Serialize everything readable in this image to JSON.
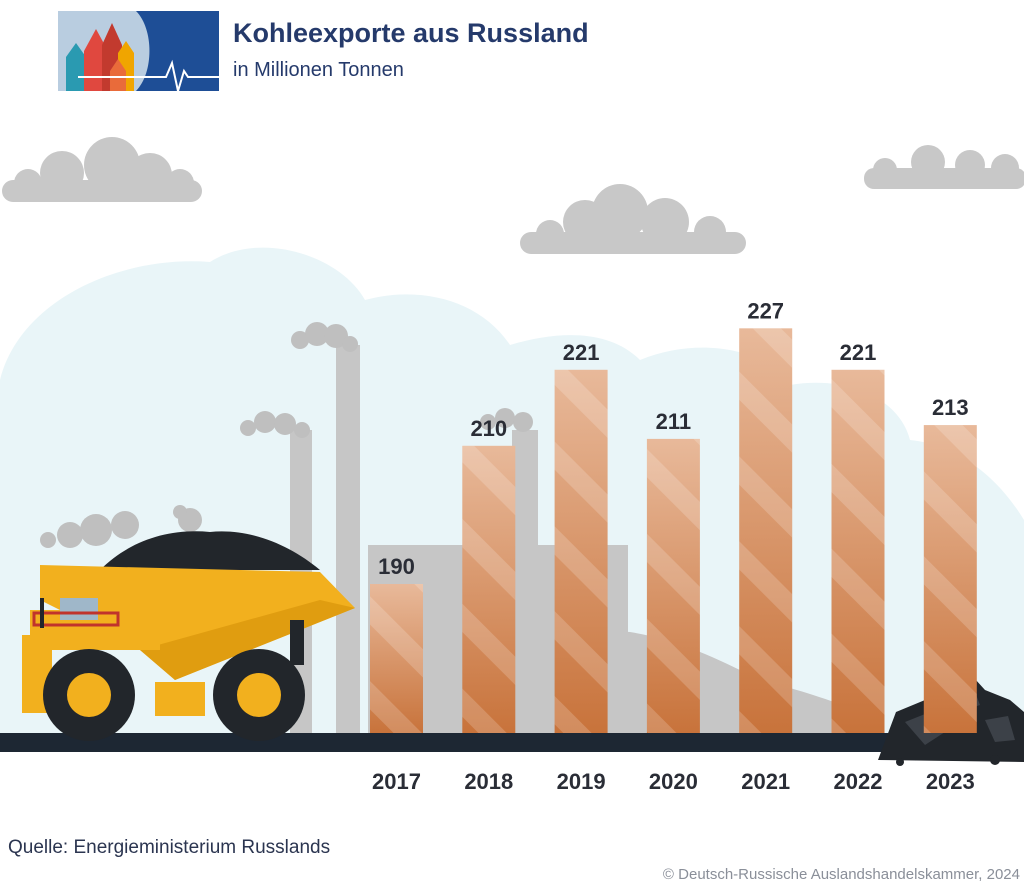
{
  "header": {
    "title": "Kohleexporte aus Russland",
    "subtitle": "in Millionen Tonnen"
  },
  "footer": {
    "source": "Quelle: Energieministerium Russlands",
    "copyright": "© Deutsch-Russische Auslandshandelskammer, 2024"
  },
  "colors": {
    "title": "#253a6b",
    "bar_top": "#e8b99a",
    "bar_bottom": "#c8733b",
    "ground": "#1d2733",
    "cloud": "#c8c8c8",
    "backdrop": "#e9f5f8",
    "truck": "#f2b01e",
    "logo_blue": "#1e4e96"
  },
  "icons": [
    "logo-cathedral-heartbeat-icon",
    "dump-truck-icon",
    "coal-pile-icon",
    "cloud-icon",
    "factory-chimney-icon"
  ],
  "chart_data": {
    "type": "bar",
    "title": "Kohleexporte aus Russland",
    "subtitle": "in Millionen Tonnen",
    "categories": [
      "2017",
      "2018",
      "2019",
      "2020",
      "2021",
      "2022",
      "2023"
    ],
    "values": [
      190,
      210,
      221,
      211,
      227,
      221,
      213
    ],
    "data_labels": [
      "190",
      "210",
      "221",
      "211",
      "227",
      "221",
      "213"
    ],
    "unit": "Millionen Tonnen",
    "ylim": [
      0,
      227
    ],
    "grid": false,
    "legend": "none"
  }
}
